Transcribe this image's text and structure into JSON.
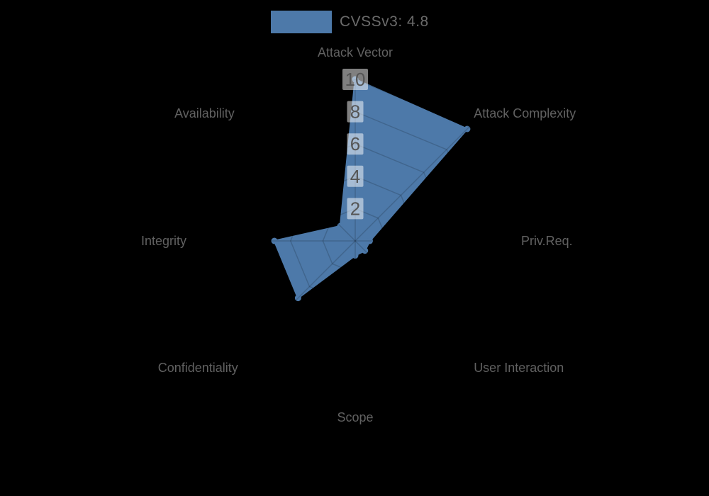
{
  "legend": {
    "label": "CVSSv3: 4.8",
    "swatch_color": "#4d79a9"
  },
  "chart_data": {
    "type": "radar",
    "title": "CVSSv3: 4.8",
    "categories": [
      "Attack Vector",
      "Attack Complexity",
      "Priv.Req.",
      "User Interaction",
      "Scope",
      "Confidentiality",
      "Integrity",
      "Availability"
    ],
    "series": [
      {
        "name": "CVSSv3: 4.8",
        "values": [
          10,
          9.8,
          0.9,
          0.85,
          0.9,
          5,
          5,
          1.3
        ]
      }
    ],
    "ticks": [
      2,
      4,
      6,
      8,
      10
    ],
    "rmin": 0,
    "rmax": 10,
    "legend_position": "top",
    "grid": "on",
    "fill_color": "#4d79a9",
    "grid_line_color": "rgba(0,0,0,0.16)",
    "tick_label_color": "#555555",
    "tick_box_color": "rgba(255,255,255,0.5)",
    "axis_label_color": "#616161",
    "background_color": "#000000"
  }
}
